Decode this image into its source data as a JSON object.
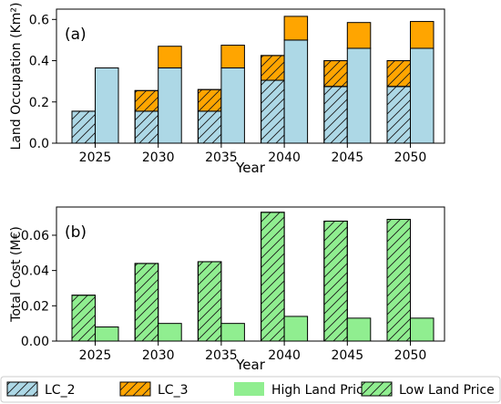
{
  "colors": {
    "lc2": "#add8e6",
    "lc3": "#ffa500",
    "high": "#90ee90",
    "low": "#90ee90",
    "edge": "#000000"
  },
  "legend": {
    "items": [
      {
        "key": "lc2",
        "label": "LC_2",
        "hatch": true
      },
      {
        "key": "lc3",
        "label": "LC_3",
        "hatch": true
      },
      {
        "key": "high",
        "label": "High Land Price",
        "hatch": false
      },
      {
        "key": "low",
        "label": "Low Land Price",
        "hatch": true
      }
    ]
  },
  "chart_data": [
    {
      "type": "bar",
      "panel_label": "(a)",
      "categories": [
        "2025",
        "2030",
        "2035",
        "2040",
        "2045",
        "2050"
      ],
      "xlabel": "Year",
      "ylabel": "Land Occupation (Km²)",
      "ylim": [
        0,
        0.65
      ],
      "yticks": [
        "0.0",
        "0.2",
        "0.4",
        "0.6"
      ],
      "ytick_values": [
        0,
        0.2,
        0.4,
        0.6
      ],
      "grid": false,
      "stacked_series": [
        {
          "name": "LC_2",
          "hatch": [
            0.155,
            0.155,
            0.155,
            0.305,
            0.275,
            0.275
          ],
          "solid": [
            0.365,
            0.365,
            0.365,
            0.5,
            0.46,
            0.46
          ]
        },
        {
          "name": "LC_3",
          "hatch": [
            0,
            0.1,
            0.105,
            0.12,
            0.125,
            0.125
          ],
          "solid": [
            0,
            0.105,
            0.11,
            0.115,
            0.125,
            0.13
          ]
        }
      ]
    },
    {
      "type": "bar",
      "panel_label": "(b)",
      "categories": [
        "2025",
        "2030",
        "2035",
        "2040",
        "2045",
        "2050"
      ],
      "xlabel": "Year",
      "ylabel": "Total Cost (M€)",
      "ylim": [
        0,
        0.076
      ],
      "yticks": [
        "0.00",
        "0.02",
        "0.04",
        "0.06"
      ],
      "ytick_values": [
        0,
        0.02,
        0.04,
        0.06
      ],
      "grid": false,
      "series": [
        {
          "name": "Low Land Price",
          "values": [
            0.026,
            0.044,
            0.045,
            0.073,
            0.068,
            0.069
          ]
        },
        {
          "name": "High Land Price",
          "values": [
            0.008,
            0.01,
            0.01,
            0.014,
            0.013,
            0.013
          ]
        }
      ]
    }
  ]
}
